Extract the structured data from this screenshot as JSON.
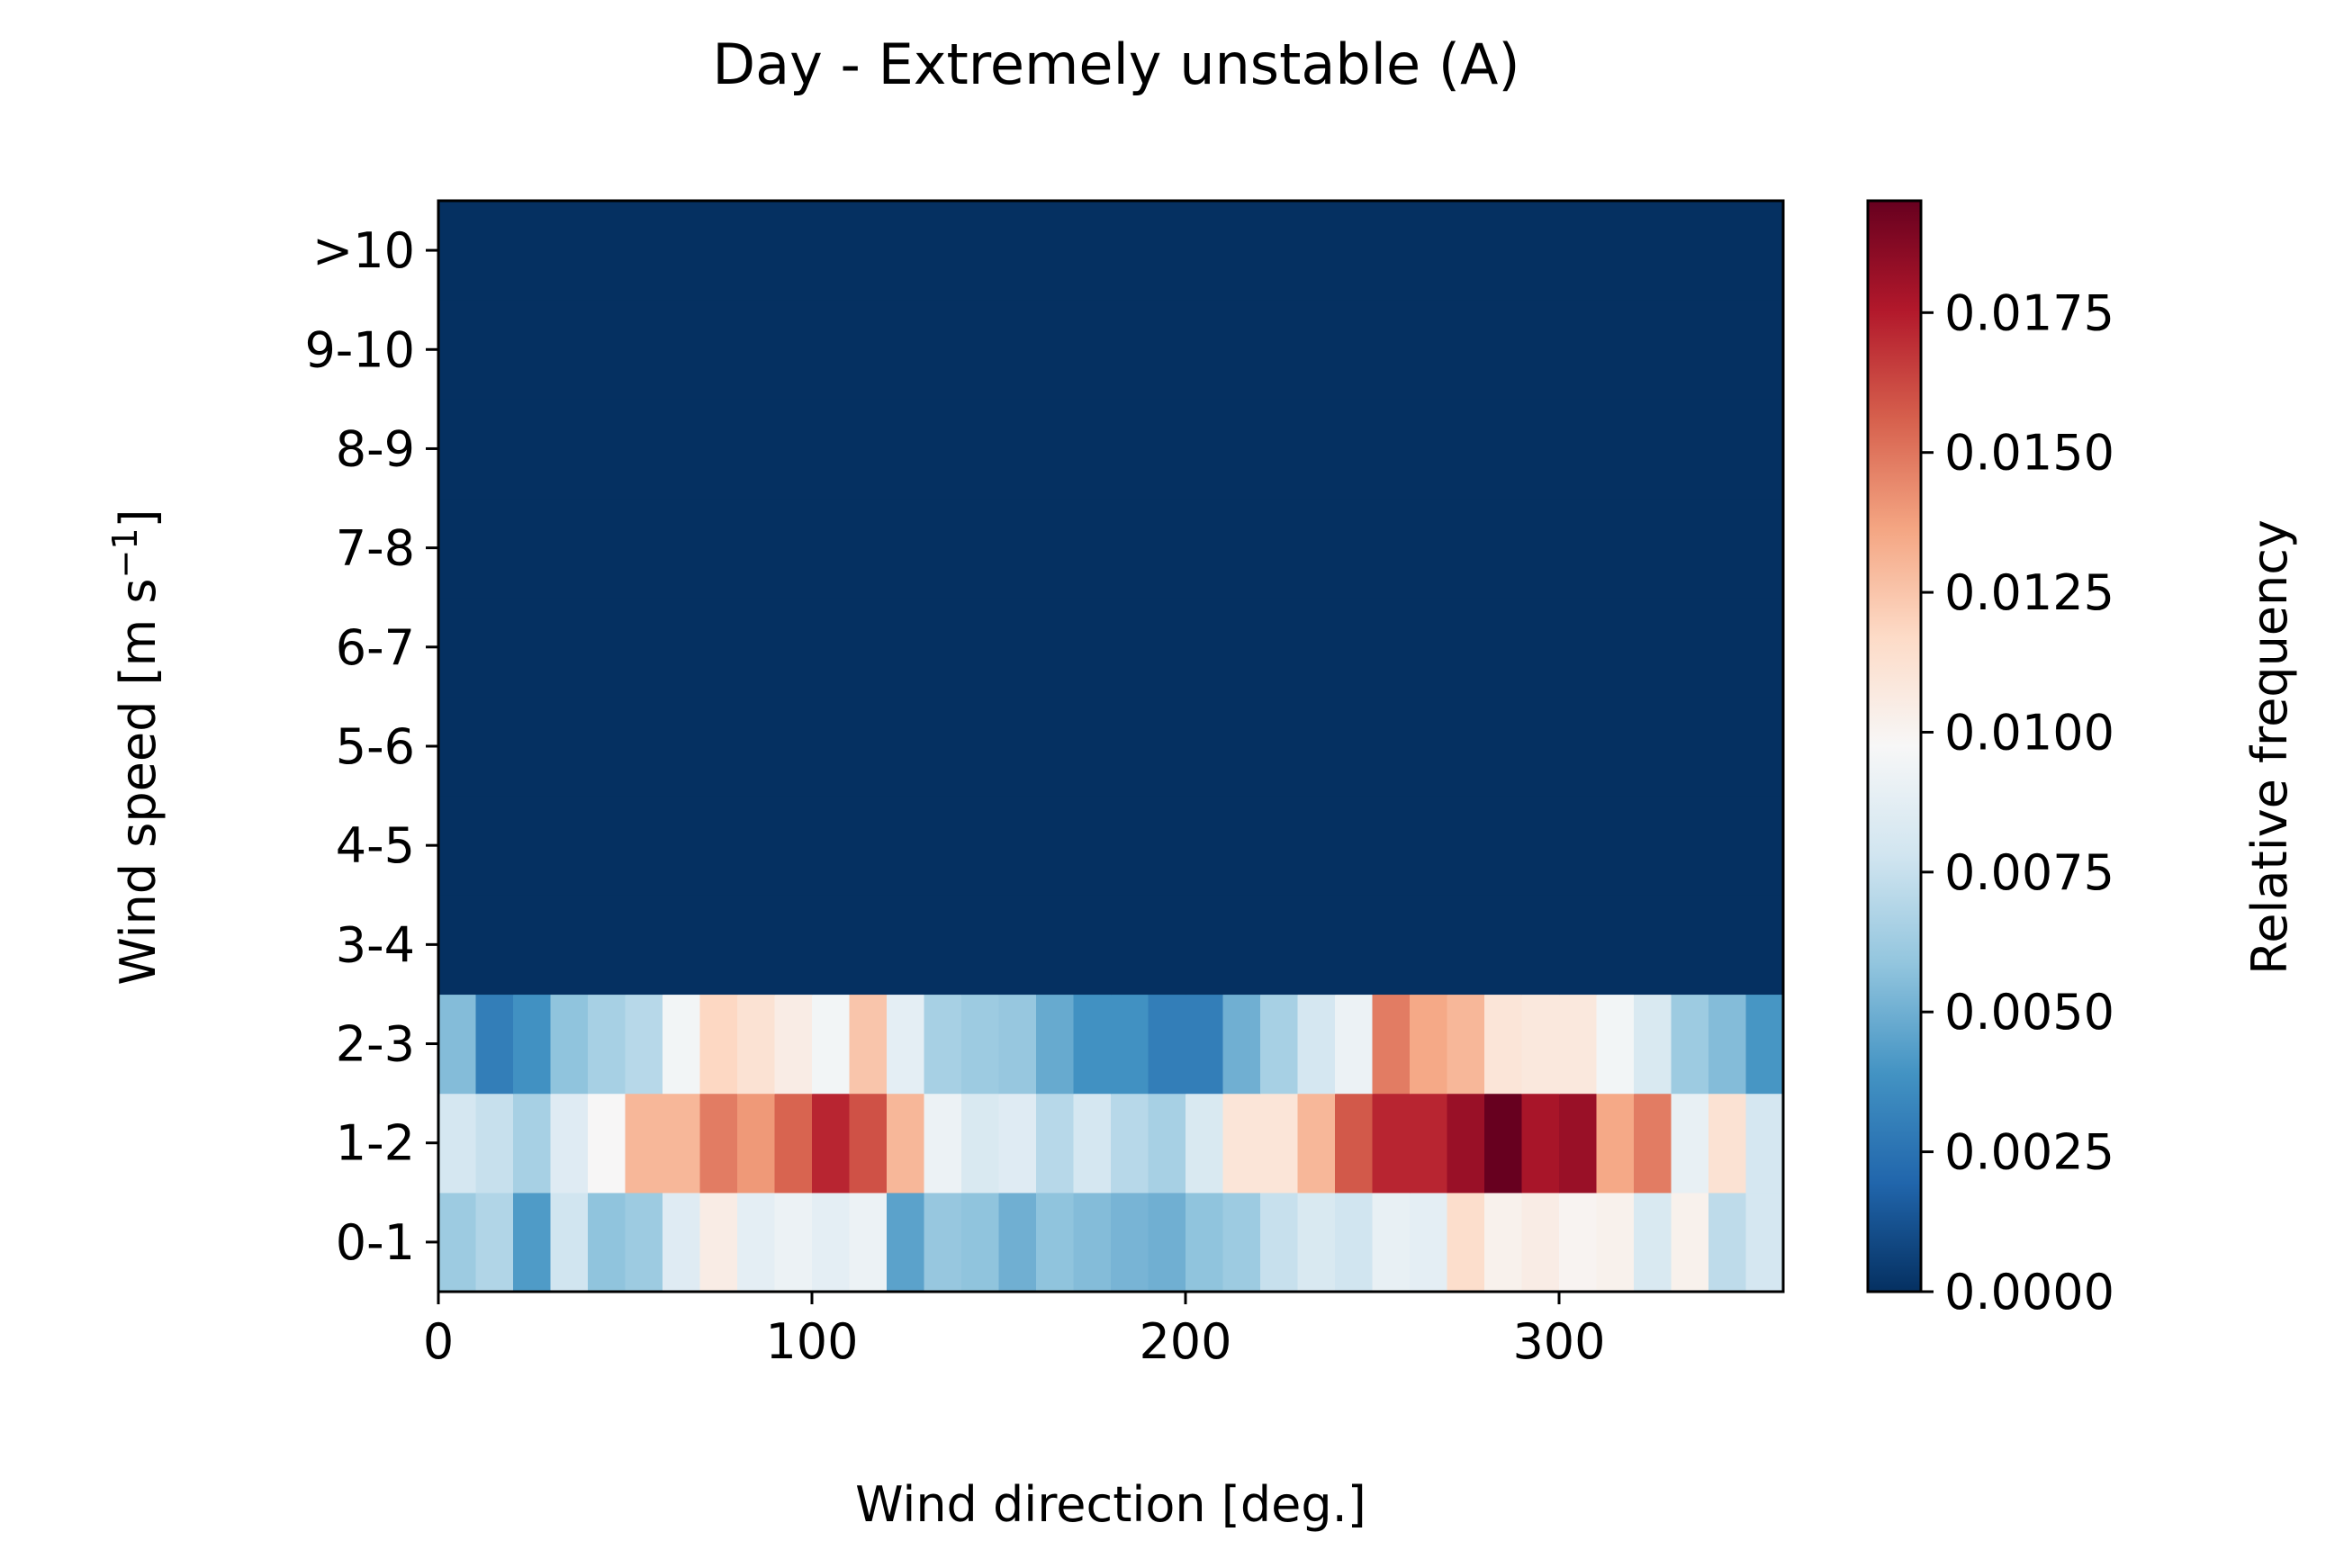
{
  "chart_data": {
    "type": "heatmap",
    "title": "Day - Extremely unstable (A)",
    "xlabel": "Wind direction [deg.]",
    "ylabel": "Wind speed [m s",
    "ylabel_superscript": "−1",
    "ylabel_close": "]",
    "colorbar_label": "Relative frequency",
    "colormap": "RdBu_r",
    "xlim": [
      0,
      360
    ],
    "x_bin_width": 10,
    "x_ticks": [
      0,
      100,
      200,
      300
    ],
    "x_tick_labels": [
      "0",
      "100",
      "200",
      "300"
    ],
    "y_categories": [
      "0-1",
      "1-2",
      "2-3",
      "3-4",
      "4-5",
      "5-6",
      "6-7",
      "7-8",
      "8-9",
      "9-10",
      ">10"
    ],
    "color_range": [
      0.0,
      0.0195
    ],
    "colorbar_ticks": [
      0.0,
      0.0025,
      0.005,
      0.0075,
      0.01,
      0.0125,
      0.015,
      0.0175
    ],
    "colorbar_tick_labels": [
      "0.0000",
      "0.0025",
      "0.0050",
      "0.0075",
      "0.0100",
      "0.0125",
      "0.0150",
      "0.0175"
    ],
    "grid": false,
    "values": [
      [
        0.0062,
        0.0068,
        0.0042,
        0.0078,
        0.0058,
        0.0062,
        0.0085,
        0.0105,
        0.0088,
        0.0092,
        0.0088,
        0.0092,
        0.0045,
        0.006,
        0.0058,
        0.005,
        0.0058,
        0.0055,
        0.0052,
        0.005,
        0.0058,
        0.0062,
        0.0075,
        0.0082,
        0.0078,
        0.009,
        0.0088,
        0.0115,
        0.0102,
        0.0105,
        0.01,
        0.0102,
        0.0082,
        0.0102,
        0.0072,
        0.008
      ],
      [
        0.008,
        0.0075,
        0.0065,
        0.0085,
        0.0098,
        0.013,
        0.013,
        0.0148,
        0.014,
        0.0155,
        0.0172,
        0.016,
        0.013,
        0.0092,
        0.0082,
        0.0085,
        0.007,
        0.008,
        0.007,
        0.0065,
        0.0082,
        0.011,
        0.011,
        0.013,
        0.0158,
        0.0172,
        0.0172,
        0.0182,
        0.0195,
        0.0178,
        0.0182,
        0.0135,
        0.0148,
        0.009,
        0.0112,
        0.008
      ],
      [
        0.0055,
        0.003,
        0.0038,
        0.0058,
        0.0065,
        0.007,
        0.0095,
        0.0118,
        0.0112,
        0.0105,
        0.0095,
        0.0125,
        0.0088,
        0.0065,
        0.0062,
        0.006,
        0.0048,
        0.0038,
        0.0038,
        0.003,
        0.003,
        0.005,
        0.0065,
        0.008,
        0.0092,
        0.0148,
        0.0135,
        0.013,
        0.011,
        0.0108,
        0.0108,
        0.0095,
        0.0082,
        0.0062,
        0.0055,
        0.004
      ],
      [
        0,
        0,
        0,
        0,
        0,
        0,
        0,
        0,
        0,
        0,
        0,
        0,
        0,
        0,
        0,
        0,
        0,
        0,
        0,
        0,
        0,
        0,
        0,
        0,
        0,
        0,
        0,
        0,
        0,
        0,
        0,
        0,
        0,
        0,
        0,
        0
      ],
      [
        0,
        0,
        0,
        0,
        0,
        0,
        0,
        0,
        0,
        0,
        0,
        0,
        0,
        0,
        0,
        0,
        0,
        0,
        0,
        0,
        0,
        0,
        0,
        0,
        0,
        0,
        0,
        0,
        0,
        0,
        0,
        0,
        0,
        0,
        0,
        0
      ],
      [
        0,
        0,
        0,
        0,
        0,
        0,
        0,
        0,
        0,
        0,
        0,
        0,
        0,
        0,
        0,
        0,
        0,
        0,
        0,
        0,
        0,
        0,
        0,
        0,
        0,
        0,
        0,
        0,
        0,
        0,
        0,
        0,
        0,
        0,
        0,
        0
      ],
      [
        0,
        0,
        0,
        0,
        0,
        0,
        0,
        0,
        0,
        0,
        0,
        0,
        0,
        0,
        0,
        0,
        0,
        0,
        0,
        0,
        0,
        0,
        0,
        0,
        0,
        0,
        0,
        0,
        0,
        0,
        0,
        0,
        0,
        0,
        0,
        0
      ],
      [
        0,
        0,
        0,
        0,
        0,
        0,
        0,
        0,
        0,
        0,
        0,
        0,
        0,
        0,
        0,
        0,
        0,
        0,
        0,
        0,
        0,
        0,
        0,
        0,
        0,
        0,
        0,
        0,
        0,
        0,
        0,
        0,
        0,
        0,
        0,
        0
      ],
      [
        0,
        0,
        0,
        0,
        0,
        0,
        0,
        0,
        0,
        0,
        0,
        0,
        0,
        0,
        0,
        0,
        0,
        0,
        0,
        0,
        0,
        0,
        0,
        0,
        0,
        0,
        0,
        0,
        0,
        0,
        0,
        0,
        0,
        0,
        0,
        0
      ],
      [
        0,
        0,
        0,
        0,
        0,
        0,
        0,
        0,
        0,
        0,
        0,
        0,
        0,
        0,
        0,
        0,
        0,
        0,
        0,
        0,
        0,
        0,
        0,
        0,
        0,
        0,
        0,
        0,
        0,
        0,
        0,
        0,
        0,
        0,
        0,
        0
      ],
      [
        0,
        0,
        0,
        0,
        0,
        0,
        0,
        0,
        0,
        0,
        0,
        0,
        0,
        0,
        0,
        0,
        0,
        0,
        0,
        0,
        0,
        0,
        0,
        0,
        0,
        0,
        0,
        0,
        0,
        0,
        0,
        0,
        0,
        0,
        0,
        0
      ]
    ]
  }
}
